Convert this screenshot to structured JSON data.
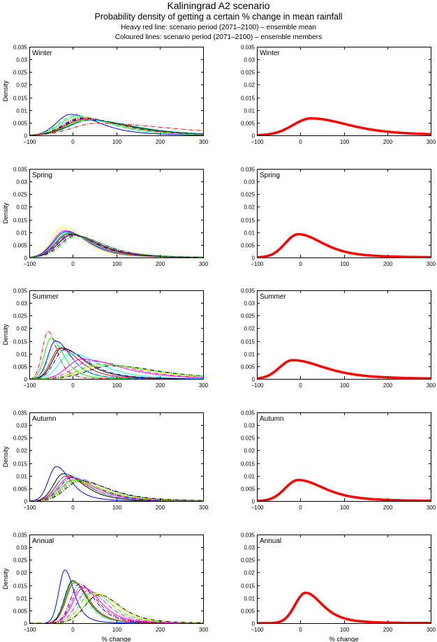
{
  "header": {
    "title": "Kaliningrad A2 scenario",
    "subtitle": "Probability density of getting a certain % change in mean rainfall",
    "note_mean": "Heavy red line: scenario period (2071–2100) – ensemble mean",
    "note_members": "Coloured lines: scenario period (2071–2100) – ensemble members"
  },
  "chart_data": {
    "type": "line",
    "layout": "5 rows x 2 columns of small multiples",
    "xlabel": "% change",
    "ylabel": "Density",
    "xlim": [
      -100,
      300
    ],
    "ylim": [
      0,
      0.035
    ],
    "xticks": [
      -100,
      0,
      100,
      200,
      300
    ],
    "xtick_labels": [
      "−100",
      "0",
      "100",
      "200",
      "300"
    ],
    "yticks": [
      0,
      0.005,
      0.01,
      0.015,
      0.02,
      0.025,
      0.03,
      0.035
    ],
    "ytick_labels": [
      "0",
      "0.005",
      "0.01",
      "0.015",
      "0.02",
      "0.025",
      "0.03",
      "0.035"
    ],
    "grid": false,
    "legend": "none",
    "mean_color": "#ff0000",
    "curve_model": "skewed density: each curve described by its mode (% change), peak density, left spread and right spread (% change)",
    "panels": [
      {
        "label": "Winter",
        "members": [
          {
            "mode": -5,
            "peak": 0.0083,
            "left": 32,
            "right": 70,
            "color": "#0000ff",
            "dash": "solid"
          },
          {
            "mode": 5,
            "peak": 0.0078,
            "left": 36,
            "right": 85,
            "color": "#00ff00",
            "dash": "dashdot"
          },
          {
            "mode": 10,
            "peak": 0.0075,
            "left": 38,
            "right": 88,
            "color": "#00ffff",
            "dash": "solid"
          },
          {
            "mode": 15,
            "peak": 0.0072,
            "left": 40,
            "right": 92,
            "color": "#ffff00",
            "dash": "solid"
          },
          {
            "mode": 18,
            "peak": 0.007,
            "left": 40,
            "right": 95,
            "color": "#ff00ff",
            "dash": "dashdot"
          },
          {
            "mode": 22,
            "peak": 0.0068,
            "left": 42,
            "right": 98,
            "color": "#000000",
            "dash": "dashdot"
          },
          {
            "mode": 25,
            "peak": 0.0066,
            "left": 44,
            "right": 100,
            "color": "#0000ff",
            "dash": "dashdot"
          },
          {
            "mode": 28,
            "peak": 0.0064,
            "left": 45,
            "right": 102,
            "color": "#ff0000",
            "dash": "solid"
          },
          {
            "mode": 32,
            "peak": 0.0062,
            "left": 46,
            "right": 104,
            "color": "#00ff00",
            "dash": "solid"
          },
          {
            "mode": 38,
            "peak": 0.006,
            "left": 48,
            "right": 106,
            "color": "#000000",
            "dash": "solid"
          },
          {
            "mode": 40,
            "peak": 0.0061,
            "left": 45,
            "right": 110,
            "color": "#00ffff",
            "dash": "dashdot"
          },
          {
            "mode": 55,
            "peak": 0.0048,
            "left": 55,
            "right": 180,
            "color": "#ff0000",
            "dash": "dashdot"
          }
        ],
        "mean": {
          "mode": 25,
          "peak": 0.0067,
          "left": 42,
          "right": 95
        }
      },
      {
        "label": "Spring",
        "members": [
          {
            "mode": -22,
            "peak": 0.012,
            "left": 26,
            "right": 50,
            "color": "#ffff00",
            "dash": "solid"
          },
          {
            "mode": -18,
            "peak": 0.0106,
            "left": 28,
            "right": 55,
            "color": "#ff00ff",
            "dash": "solid"
          },
          {
            "mode": -15,
            "peak": 0.0102,
            "left": 29,
            "right": 57,
            "color": "#0000ff",
            "dash": "solid"
          },
          {
            "mode": -12,
            "peak": 0.0098,
            "left": 30,
            "right": 58,
            "color": "#00ffff",
            "dash": "solid"
          },
          {
            "mode": -10,
            "peak": 0.0096,
            "left": 30,
            "right": 60,
            "color": "#00ff00",
            "dash": "solid"
          },
          {
            "mode": -8,
            "peak": 0.0094,
            "left": 31,
            "right": 62,
            "color": "#ff0000",
            "dash": "solid"
          },
          {
            "mode": -5,
            "peak": 0.0092,
            "left": 32,
            "right": 64,
            "color": "#0000ff",
            "dash": "dashdot"
          },
          {
            "mode": -2,
            "peak": 0.009,
            "left": 32,
            "right": 66,
            "color": "#000000",
            "dash": "solid"
          },
          {
            "mode": 0,
            "peak": 0.0088,
            "left": 33,
            "right": 68,
            "color": "#ff00ff",
            "dash": "dashdot"
          },
          {
            "mode": 5,
            "peak": 0.0086,
            "left": 34,
            "right": 70,
            "color": "#000000",
            "dash": "dashdot"
          },
          {
            "mode": 8,
            "peak": 0.0082,
            "left": 34,
            "right": 72,
            "color": "#00ff00",
            "dash": "dashdot"
          }
        ],
        "mean": {
          "mode": -5,
          "peak": 0.0092,
          "left": 30,
          "right": 62
        }
      },
      {
        "label": "Summer",
        "members": [
          {
            "mode": -57,
            "peak": 0.0188,
            "left": 13,
            "right": 22,
            "color": "#ff0000",
            "dash": "dashdot"
          },
          {
            "mode": -50,
            "peak": 0.0162,
            "left": 15,
            "right": 30,
            "color": "#00ff00",
            "dash": "solid"
          },
          {
            "mode": -40,
            "peak": 0.015,
            "left": 17,
            "right": 38,
            "color": "#0000ff",
            "dash": "solid"
          },
          {
            "mode": -38,
            "peak": 0.0132,
            "left": 18,
            "right": 40,
            "color": "#00ffff",
            "dash": "dashdot"
          },
          {
            "mode": -30,
            "peak": 0.0122,
            "left": 20,
            "right": 48,
            "color": "#ff0000",
            "dash": "solid"
          },
          {
            "mode": -25,
            "peak": 0.0122,
            "left": 21,
            "right": 55,
            "color": "#000000",
            "dash": "solid"
          },
          {
            "mode": -20,
            "peak": 0.0115,
            "left": 22,
            "right": 58,
            "color": "#0000ff",
            "dash": "dashdot"
          },
          {
            "mode": -5,
            "peak": 0.01,
            "left": 26,
            "right": 70,
            "color": "#00ffff",
            "dash": "solid"
          },
          {
            "mode": 20,
            "peak": 0.0078,
            "left": 32,
            "right": 95,
            "color": "#ff00ff",
            "dash": "solid"
          },
          {
            "mode": 40,
            "peak": 0.007,
            "left": 38,
            "right": 100,
            "color": "#ff00ff",
            "dash": "dashdot"
          },
          {
            "mode": 70,
            "peak": 0.0055,
            "left": 50,
            "right": 110,
            "color": "#ffff00",
            "dash": "solid"
          },
          {
            "mode": 90,
            "peak": 0.0052,
            "left": 55,
            "right": 115,
            "color": "#000000",
            "dash": "dashdot"
          },
          {
            "mode": 60,
            "peak": 0.0058,
            "left": 45,
            "right": 120,
            "color": "#00ff00",
            "dash": "dashdot"
          }
        ],
        "mean": {
          "mode": -18,
          "peak": 0.0074,
          "left": 30,
          "right": 80
        }
      },
      {
        "label": "Autumn",
        "members": [
          {
            "mode": -38,
            "peak": 0.0136,
            "left": 18,
            "right": 35,
            "color": "#0000ff",
            "dash": "solid"
          },
          {
            "mode": -22,
            "peak": 0.0108,
            "left": 22,
            "right": 50,
            "color": "#000000",
            "dash": "solid"
          },
          {
            "mode": -15,
            "peak": 0.0098,
            "left": 24,
            "right": 55,
            "color": "#ff0000",
            "dash": "solid"
          },
          {
            "mode": -12,
            "peak": 0.0104,
            "left": 24,
            "right": 52,
            "color": "#00ffff",
            "dash": "dashdot"
          },
          {
            "mode": -8,
            "peak": 0.0093,
            "left": 26,
            "right": 60,
            "color": "#ff00ff",
            "dash": "solid"
          },
          {
            "mode": -3,
            "peak": 0.0092,
            "left": 27,
            "right": 62,
            "color": "#0000ff",
            "dash": "dashdot"
          },
          {
            "mode": 0,
            "peak": 0.0083,
            "left": 28,
            "right": 68,
            "color": "#00ff00",
            "dash": "solid"
          },
          {
            "mode": 3,
            "peak": 0.008,
            "left": 29,
            "right": 70,
            "color": "#ffff00",
            "dash": "solid"
          },
          {
            "mode": 8,
            "peak": 0.0088,
            "left": 30,
            "right": 70,
            "color": "#ff00ff",
            "dash": "dashdot"
          },
          {
            "mode": 12,
            "peak": 0.0082,
            "left": 32,
            "right": 72,
            "color": "#00ff00",
            "dash": "dashdot"
          },
          {
            "mode": 15,
            "peak": 0.0078,
            "left": 32,
            "right": 75,
            "color": "#000000",
            "dash": "dashdot"
          }
        ],
        "mean": {
          "mode": -5,
          "peak": 0.0083,
          "left": 30,
          "right": 65
        }
      },
      {
        "label": "Annual",
        "members": [
          {
            "mode": -18,
            "peak": 0.021,
            "left": 14,
            "right": 22,
            "color": "#0000ff",
            "dash": "solid"
          },
          {
            "mode": -2,
            "peak": 0.0165,
            "left": 18,
            "right": 32,
            "color": "#00ffff",
            "dash": "dashdot"
          },
          {
            "mode": 0,
            "peak": 0.0168,
            "left": 18,
            "right": 34,
            "color": "#000000",
            "dash": "solid"
          },
          {
            "mode": 2,
            "peak": 0.0165,
            "left": 18,
            "right": 34,
            "color": "#00ff00",
            "dash": "solid"
          },
          {
            "mode": 4,
            "peak": 0.016,
            "left": 19,
            "right": 35,
            "color": "#ff0000",
            "dash": "solid"
          },
          {
            "mode": 15,
            "peak": 0.0155,
            "left": 20,
            "right": 38,
            "color": "#0000ff",
            "dash": "dashdot"
          },
          {
            "mode": 20,
            "peak": 0.0145,
            "left": 22,
            "right": 40,
            "color": "#ff0000",
            "dash": "dashdot"
          },
          {
            "mode": 25,
            "peak": 0.014,
            "left": 24,
            "right": 42,
            "color": "#ff00ff",
            "dash": "solid"
          },
          {
            "mode": 35,
            "peak": 0.0128,
            "left": 26,
            "right": 46,
            "color": "#ff00ff",
            "dash": "dashdot"
          },
          {
            "mode": 45,
            "peak": 0.0122,
            "left": 28,
            "right": 48,
            "color": "#00ff00",
            "dash": "dashdot"
          },
          {
            "mode": 55,
            "peak": 0.0118,
            "left": 30,
            "right": 50,
            "color": "#ffff00",
            "dash": "solid"
          },
          {
            "mode": 60,
            "peak": 0.0112,
            "left": 32,
            "right": 52,
            "color": "#000000",
            "dash": "dashdot"
          }
        ],
        "mean": {
          "mode": 12,
          "peak": 0.012,
          "left": 24,
          "right": 42
        }
      }
    ]
  }
}
